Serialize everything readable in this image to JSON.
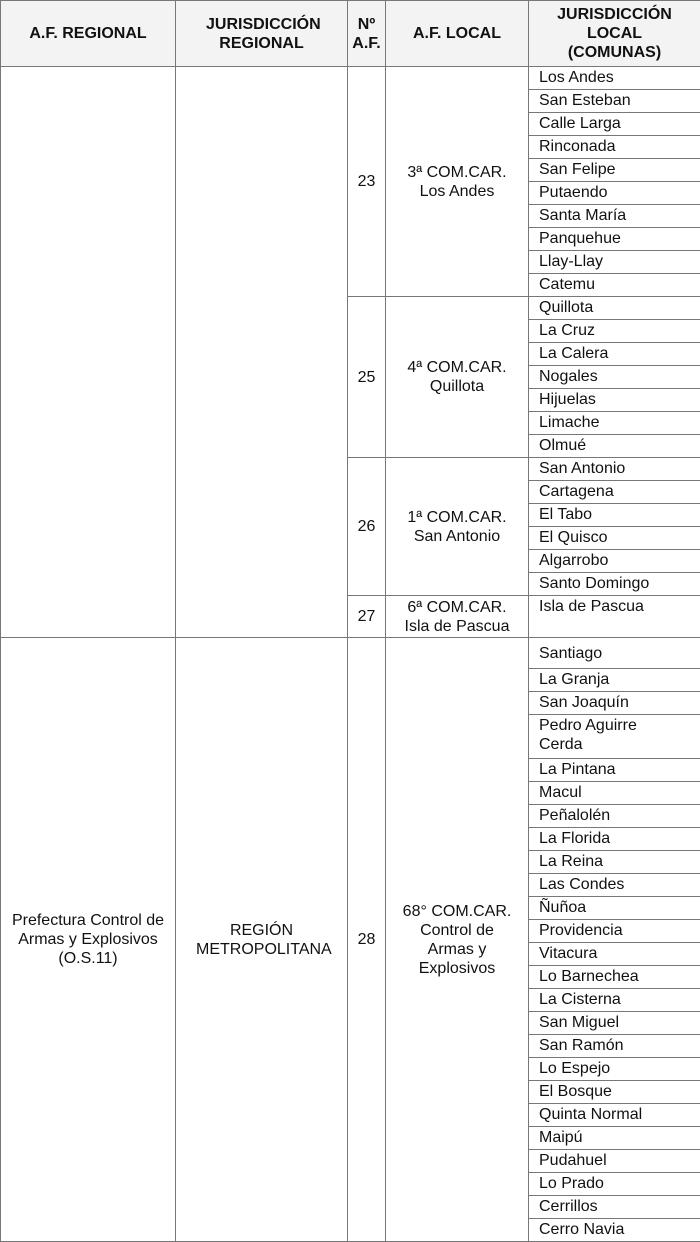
{
  "headers": [
    "A.F. REGIONAL",
    "JURISDICCIÓN REGIONAL",
    "Nº A.F.",
    "A.F. LOCAL",
    "JURISDICCIÓN LOCAL (COMUNAS)"
  ],
  "regions": [
    {
      "af_regional": "",
      "jurisdiccion_regional": "",
      "locals": [
        {
          "num": "23",
          "af_local": "3ª COM.CAR. Los Andes",
          "comunas": [
            "Los Andes",
            "San Esteban",
            "Calle Larga",
            "Rinconada",
            "San Felipe",
            "Putaendo",
            "Santa María",
            "Panquehue",
            "Llay-Llay",
            "Catemu"
          ]
        },
        {
          "num": "25",
          "af_local": "4ª COM.CAR. Quillota",
          "comunas": [
            "Quillota",
            "La Cruz",
            "La Calera",
            "Nogales",
            "Hijuelas",
            "Limache",
            "Olmué"
          ]
        },
        {
          "num": "26",
          "af_local": "1ª COM.CAR. San Antonio",
          "comunas": [
            "San Antonio",
            "Cartagena",
            "El Tabo",
            "El Quisco",
            "Algarrobo",
            "Santo Domingo"
          ]
        },
        {
          "num": "27",
          "af_local": "6ª COM.CAR. Isla de Pascua",
          "comunas": [
            "Isla de Pascua"
          ]
        }
      ]
    },
    {
      "af_regional": "Prefectura Control de Armas y Explosivos (O.S.11)",
      "jurisdiccion_regional": "REGIÓN METROPOLITANA",
      "locals": [
        {
          "num": "28",
          "af_local": "68° COM.CAR. Control de Armas y Explosivos",
          "comunas": [
            "Santiago",
            "La Granja",
            "San Joaquín",
            "Pedro Aguirre Cerda",
            "La Pintana",
            "Macul",
            "Peñalolén",
            "La Florida",
            "La Reina",
            "Las Condes",
            "Ñuñoa",
            "Providencia",
            "Vitacura",
            "Lo Barnechea",
            "La Cisterna",
            "San Miguel",
            "San Ramón",
            "Lo Espejo",
            "El Bosque",
            "Quinta Normal",
            "Maipú",
            "Pudahuel",
            "Lo Prado",
            "Cerrillos",
            "Cerro Navia"
          ]
        }
      ]
    }
  ]
}
